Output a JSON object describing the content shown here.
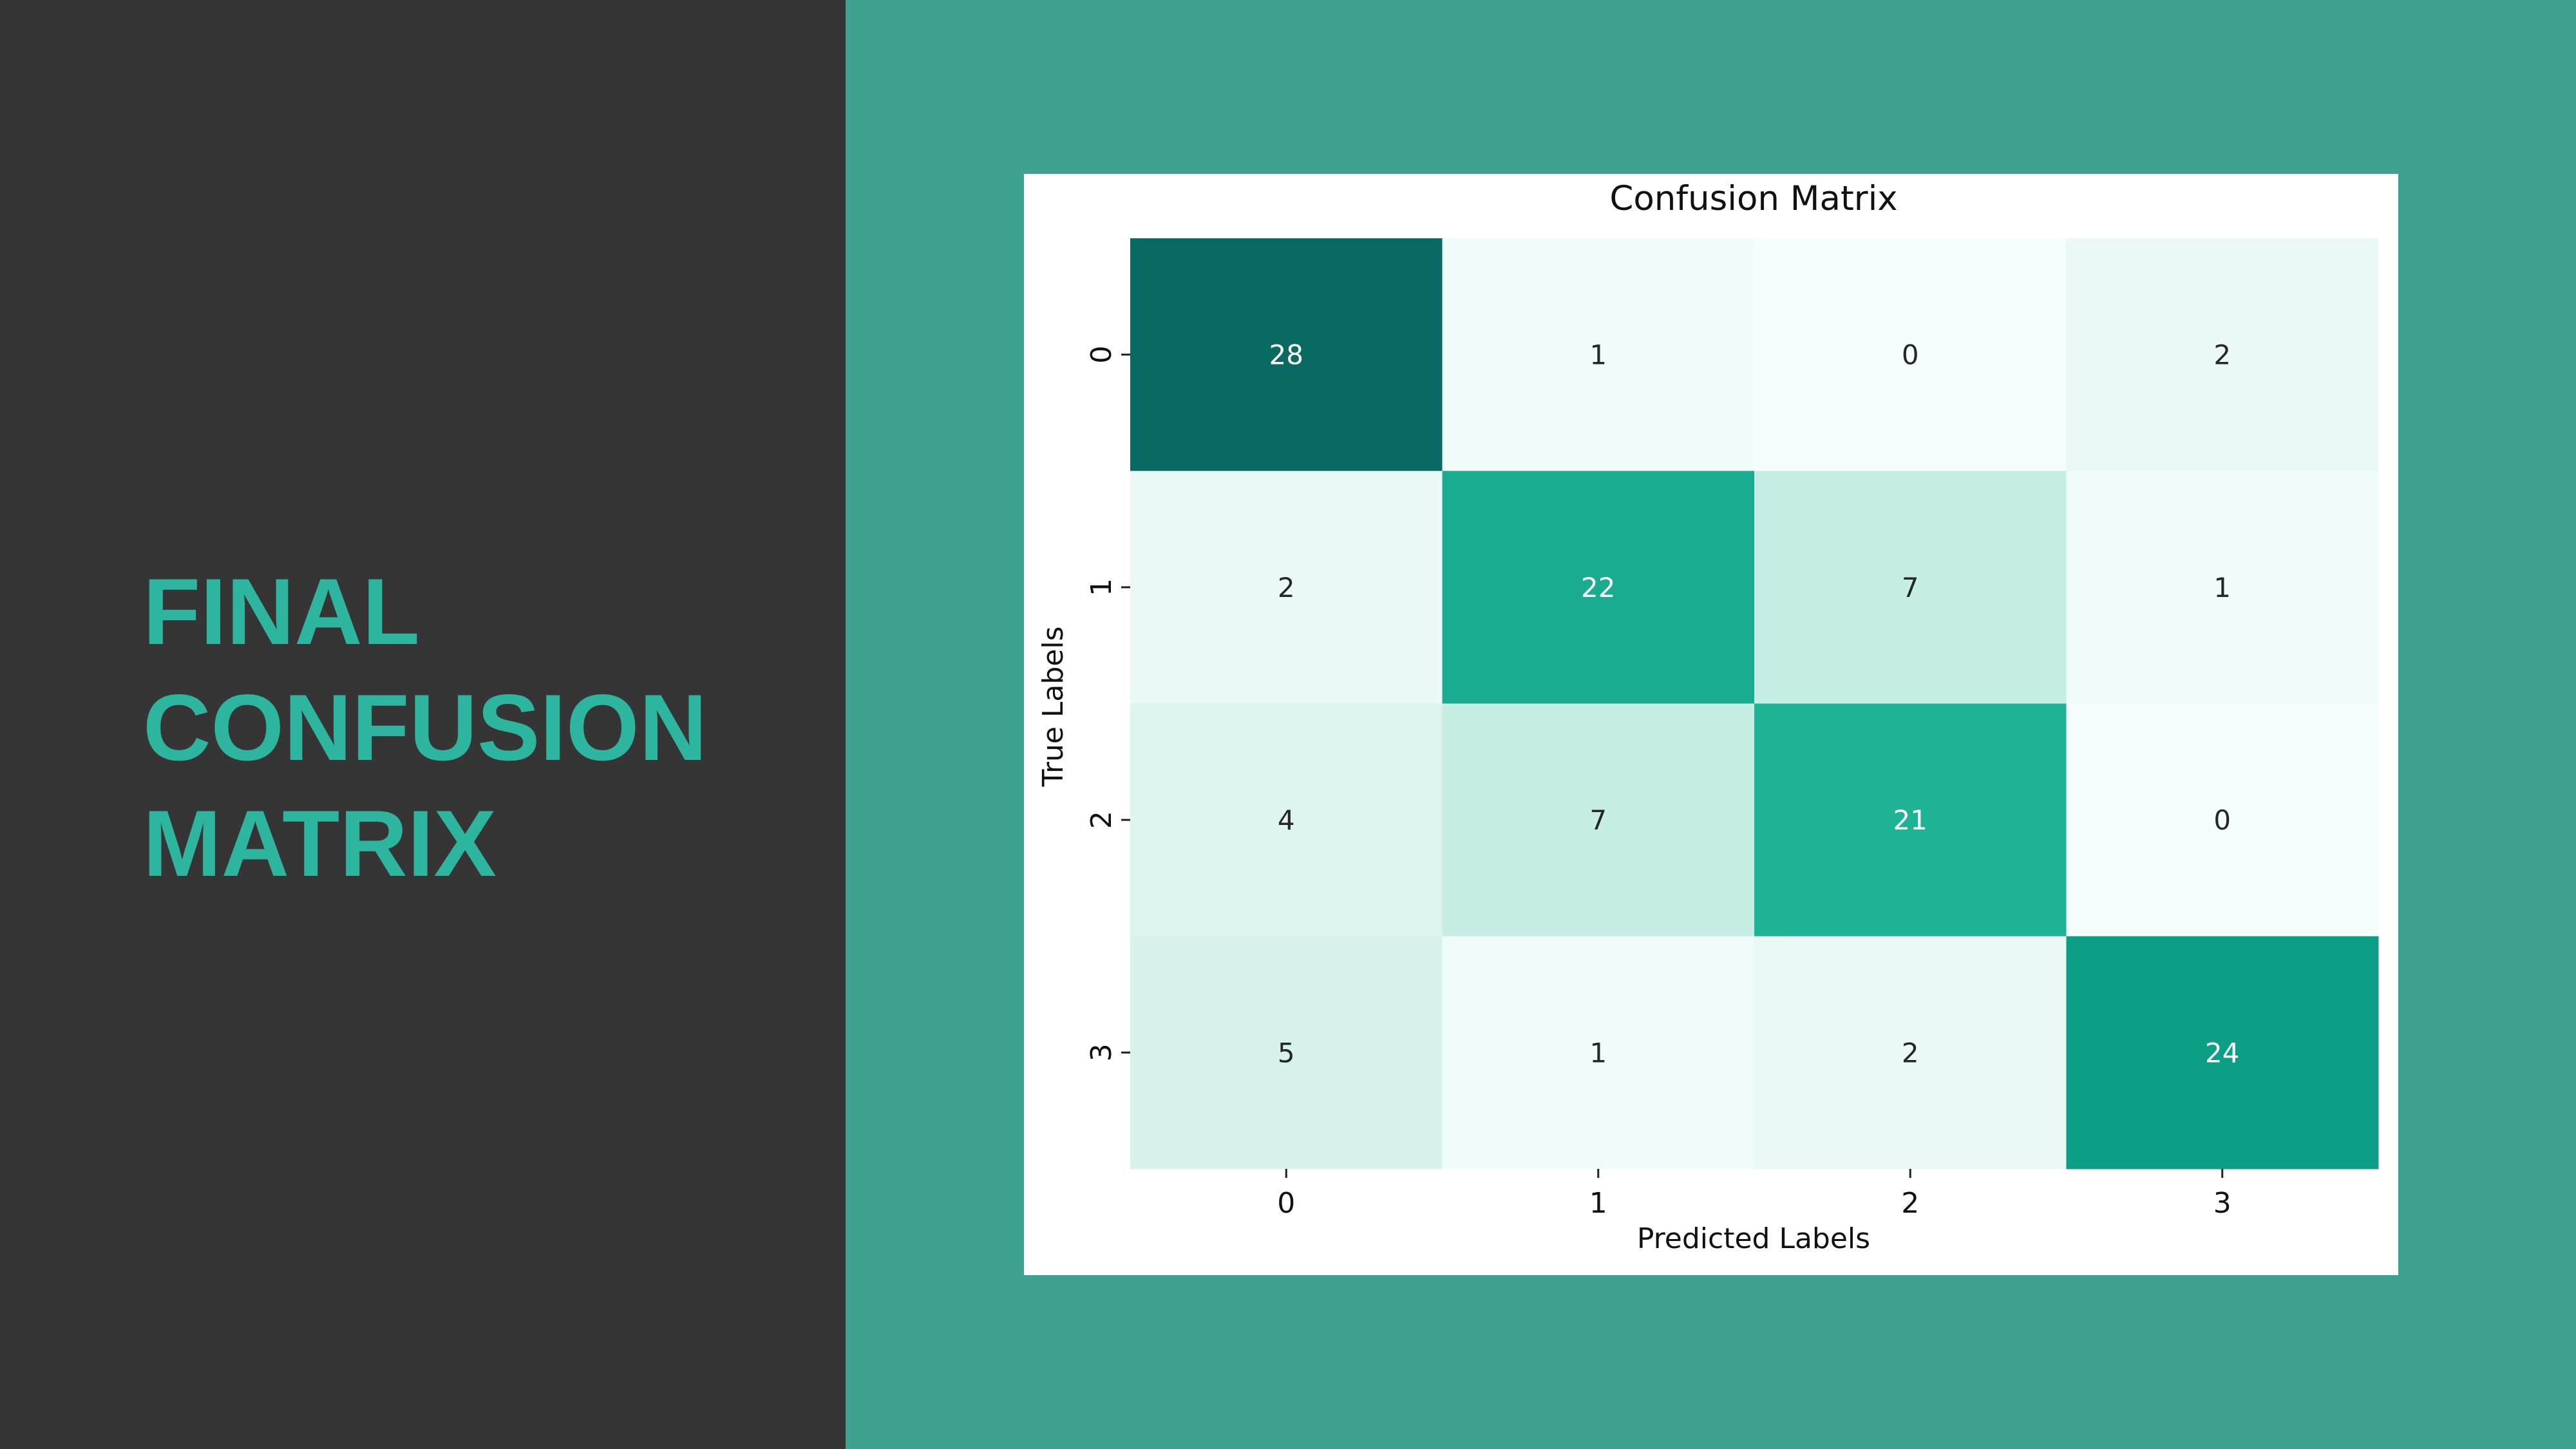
{
  "slide": {
    "title_lines": [
      "FINAL",
      "CONFUSION",
      "MATRIX"
    ]
  },
  "colors": {
    "left_panel": "#353535",
    "background": "#3fa28f",
    "title": "#2eb59f",
    "card": "#ffffff"
  },
  "chart_data": {
    "type": "heatmap",
    "title": "Confusion Matrix",
    "xlabel": "Predicted Labels",
    "ylabel": "True Labels",
    "x_categories": [
      "0",
      "1",
      "2",
      "3"
    ],
    "y_categories": [
      "0",
      "1",
      "2",
      "3"
    ],
    "values": [
      [
        28,
        1,
        0,
        2
      ],
      [
        2,
        22,
        7,
        1
      ],
      [
        4,
        7,
        21,
        0
      ],
      [
        5,
        1,
        2,
        24
      ]
    ],
    "colorbar": false,
    "color_scale": {
      "min_color": "#f5fefd",
      "max_color": "#086a62"
    }
  }
}
